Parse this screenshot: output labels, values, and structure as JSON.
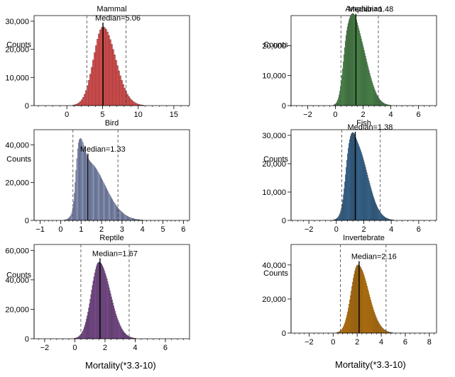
{
  "figure": {
    "xlabel_left": "Mortality(*3.3-10)",
    "xlabel_right": "Mortality(*3.3-10)"
  },
  "chart_data": [
    {
      "type": "histogram",
      "title": "Mammal",
      "ylabel": "Counts",
      "color": "#f05252",
      "median": 5.06,
      "median_label": "Median=5.06",
      "ci": [
        2.8,
        8.3
      ],
      "xlim": [
        -4.6,
        17.2
      ],
      "ylim": [
        0,
        32000
      ],
      "xticks": [
        0,
        5,
        10,
        15
      ],
      "yticks": [
        0,
        10000,
        20000,
        30000
      ],
      "ytick_labels": [
        "0",
        "10,000",
        "20,000",
        "30,000"
      ],
      "bin_width": 0.2,
      "components": [
        {
          "mu": 5.06,
          "sl": 1.3,
          "sr": 1.75,
          "peak": 28000
        }
      ]
    },
    {
      "type": "histogram",
      "title": "Amphibian",
      "ylabel": "Counts",
      "color": "#5cb85c",
      "median": 1.48,
      "median_label": "Median=1.48",
      "ci": [
        0.4,
        3.1
      ],
      "xlim": [
        -3.2,
        7.3
      ],
      "ylim": [
        0,
        30000
      ],
      "xticks": [
        -2,
        0,
        2,
        4,
        6
      ],
      "yticks": [
        0,
        10000,
        20000
      ],
      "ytick_labels": [
        "0",
        "10,000",
        "20,000"
      ],
      "bin_width": 0.05,
      "components": [
        {
          "mu": 0.85,
          "sl": 0.3,
          "sr": 0.45,
          "peak": 17000
        },
        {
          "mu": 1.55,
          "sl": 0.5,
          "sr": 0.75,
          "peak": 23000
        }
      ]
    },
    {
      "type": "histogram",
      "title": "Bird",
      "ylabel": "Counts",
      "color": "#a3b3e8",
      "median": 1.33,
      "median_label": "Median=1.33",
      "ci": [
        0.6,
        2.8
      ],
      "xlim": [
        -1.3,
        6.3
      ],
      "ylim": [
        0,
        48000
      ],
      "xticks": [
        -1,
        0,
        1,
        2,
        3,
        4,
        5,
        6
      ],
      "yticks": [
        0,
        20000,
        40000
      ],
      "ytick_labels": [
        "0",
        "20,000",
        "40,000"
      ],
      "bin_width": 0.04,
      "components": [
        {
          "mu": 0.88,
          "sl": 0.13,
          "sr": 0.2,
          "peak": 26000
        },
        {
          "mu": 1.3,
          "sl": 0.35,
          "sr": 0.85,
          "peak": 31000
        }
      ]
    },
    {
      "type": "histogram",
      "title": "Fish",
      "ylabel": "Counts",
      "color": "#3d86c6",
      "median": 1.38,
      "median_label": "Median=1.38",
      "ci": [
        0.4,
        3.2
      ],
      "xlim": [
        -3.3,
        7.3
      ],
      "ylim": [
        0,
        32000
      ],
      "xticks": [
        -2,
        0,
        2,
        4,
        6
      ],
      "yticks": [
        0,
        10000,
        20000,
        30000
      ],
      "ytick_labels": [
        "0",
        "10,000",
        "20,000",
        "30,000"
      ],
      "bin_width": 0.05,
      "components": [
        {
          "mu": 0.9,
          "sl": 0.25,
          "sr": 0.3,
          "peak": 10000
        },
        {
          "mu": 1.4,
          "sl": 0.5,
          "sr": 0.85,
          "peak": 27000
        }
      ]
    },
    {
      "type": "histogram",
      "title": "Reptile",
      "ylabel": "Counts",
      "color": "#9b59b6",
      "median": 1.67,
      "median_label": "Median=1.67",
      "ci": [
        0.4,
        3.6
      ],
      "xlim": [
        -2.7,
        7.6
      ],
      "ylim": [
        0,
        64000
      ],
      "xticks": [
        -2,
        0,
        2,
        4,
        6
      ],
      "yticks": [
        0,
        20000,
        40000,
        60000
      ],
      "ytick_labels": [
        "0",
        "20,000",
        "40,000",
        "60,000"
      ],
      "bin_width": 0.05,
      "components": [
        {
          "mu": 1.6,
          "sl": 0.5,
          "sr": 0.75,
          "peak": 52000
        }
      ]
    },
    {
      "type": "histogram",
      "title": "Invertebrate",
      "ylabel": "Counts",
      "color": "#ff9900",
      "median": 2.16,
      "median_label": "Median=2.16",
      "ci": [
        0.6,
        4.4
      ],
      "xlim": [
        -3.5,
        8.6
      ],
      "ylim": [
        0,
        52000
      ],
      "xticks": [
        -2,
        0,
        2,
        4,
        6,
        8
      ],
      "yticks": [
        0,
        20000,
        40000
      ],
      "ytick_labels": [
        "0",
        "20,000",
        "40,000"
      ],
      "bin_width": 0.06,
      "components": [
        {
          "mu": 2.05,
          "sl": 0.55,
          "sr": 0.9,
          "peak": 40000
        }
      ]
    }
  ]
}
